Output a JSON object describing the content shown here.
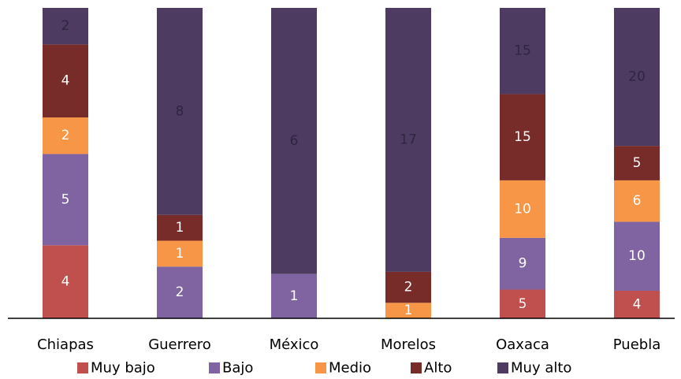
{
  "chart_data": {
    "type": "bar",
    "stacked": true,
    "categories": [
      "Chiapas",
      "Guerrero",
      "México",
      "Morelos",
      "Oaxaca",
      "Puebla"
    ],
    "series": [
      {
        "name": "Muy bajo",
        "color": "#C0504D",
        "values": [
          4,
          0,
          0,
          0,
          5,
          4
        ]
      },
      {
        "name": "Bajo",
        "color": "#8064A2",
        "values": [
          5,
          2,
          1,
          0,
          9,
          10
        ]
      },
      {
        "name": "Medio",
        "color": "#F79646",
        "values": [
          2,
          1,
          0,
          1,
          10,
          6
        ]
      },
      {
        "name": "Alto",
        "color": "#772C2A",
        "values": [
          4,
          1,
          0,
          2,
          15,
          5
        ]
      },
      {
        "name": "Muy alto",
        "color": "#4D3B62",
        "values": [
          2,
          8,
          6,
          17,
          15,
          20
        ]
      }
    ],
    "value_scale": "percent-stacked",
    "legend_position": "bottom",
    "grid": false
  }
}
